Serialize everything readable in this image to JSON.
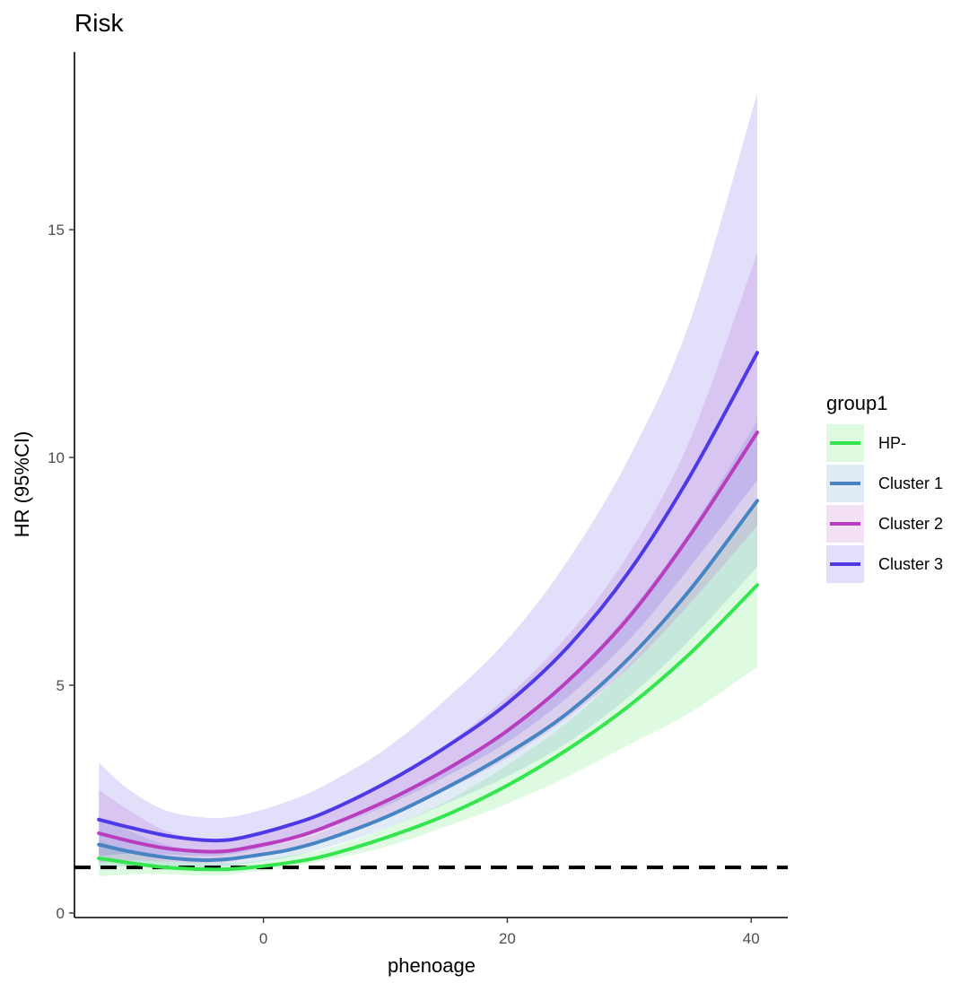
{
  "chart_data": {
    "type": "line",
    "title": "Risk",
    "xlabel": "phenoage",
    "ylabel": "HR (95%CI)",
    "xlim": [
      -15.5,
      43
    ],
    "ylim": [
      -0.1,
      18.9
    ],
    "xticks": [
      0,
      20,
      40
    ],
    "yticks": [
      0,
      5,
      10,
      15
    ],
    "x": [
      -13.5,
      -11,
      -8,
      -5,
      -3,
      -1,
      2,
      5,
      10,
      15,
      20,
      25,
      30,
      35,
      40.5
    ],
    "reference_line": {
      "y": 1,
      "style": "dashed",
      "color": "#000000"
    },
    "legend": {
      "title": "group1",
      "position": "right"
    },
    "grid": false,
    "series": [
      {
        "name": "HP-",
        "color": "#33e64d",
        "values": [
          1.2,
          1.1,
          1.0,
          0.96,
          0.96,
          1.0,
          1.1,
          1.25,
          1.65,
          2.15,
          2.8,
          3.6,
          4.55,
          5.7,
          7.2
        ],
        "lower": [
          0.8,
          0.85,
          0.85,
          0.82,
          0.84,
          0.9,
          1.0,
          1.15,
          1.45,
          1.9,
          2.4,
          3.0,
          3.7,
          4.4,
          5.4
        ],
        "upper": [
          1.6,
          1.35,
          1.15,
          1.1,
          1.1,
          1.12,
          1.25,
          1.4,
          1.85,
          2.45,
          3.25,
          4.2,
          5.45,
          7.1,
          9.0
        ]
      },
      {
        "name": "Cluster 1",
        "color": "#4684c2",
        "values": [
          1.5,
          1.35,
          1.22,
          1.16,
          1.18,
          1.25,
          1.38,
          1.6,
          2.1,
          2.75,
          3.5,
          4.4,
          5.6,
          7.1,
          9.05
        ],
        "lower": [
          1.0,
          1.02,
          1.02,
          1.0,
          1.02,
          1.1,
          1.22,
          1.42,
          1.85,
          2.4,
          3.0,
          3.75,
          4.75,
          6.0,
          7.6
        ],
        "upper": [
          2.1,
          1.8,
          1.5,
          1.36,
          1.36,
          1.42,
          1.56,
          1.8,
          2.4,
          3.15,
          4.05,
          5.15,
          6.6,
          8.4,
          10.8
        ]
      },
      {
        "name": "Cluster 2",
        "color": "#b83dbf",
        "values": [
          1.75,
          1.58,
          1.42,
          1.35,
          1.36,
          1.45,
          1.62,
          1.88,
          2.45,
          3.15,
          4.0,
          5.1,
          6.5,
          8.3,
          10.55
        ],
        "lower": [
          1.1,
          1.15,
          1.13,
          1.1,
          1.12,
          1.22,
          1.38,
          1.62,
          2.1,
          2.7,
          3.4,
          4.3,
          5.4,
          6.8,
          8.5
        ],
        "upper": [
          2.7,
          2.25,
          1.8,
          1.62,
          1.62,
          1.7,
          1.9,
          2.2,
          2.85,
          3.7,
          4.75,
          6.1,
          7.9,
          10.4,
          14.5
        ]
      },
      {
        "name": "Cluster 3",
        "color": "#4d3ae6",
        "values": [
          2.05,
          1.88,
          1.7,
          1.6,
          1.6,
          1.7,
          1.92,
          2.2,
          2.85,
          3.65,
          4.6,
          5.85,
          7.5,
          9.6,
          12.3
        ],
        "lower": [
          1.25,
          1.3,
          1.28,
          1.25,
          1.28,
          1.38,
          1.58,
          1.82,
          2.35,
          3.0,
          3.75,
          4.75,
          6.0,
          7.6,
          9.5
        ],
        "upper": [
          3.3,
          2.7,
          2.25,
          2.1,
          2.1,
          2.2,
          2.45,
          2.8,
          3.6,
          4.7,
          6.0,
          7.75,
          10.0,
          13.0,
          18.0
        ]
      }
    ]
  }
}
